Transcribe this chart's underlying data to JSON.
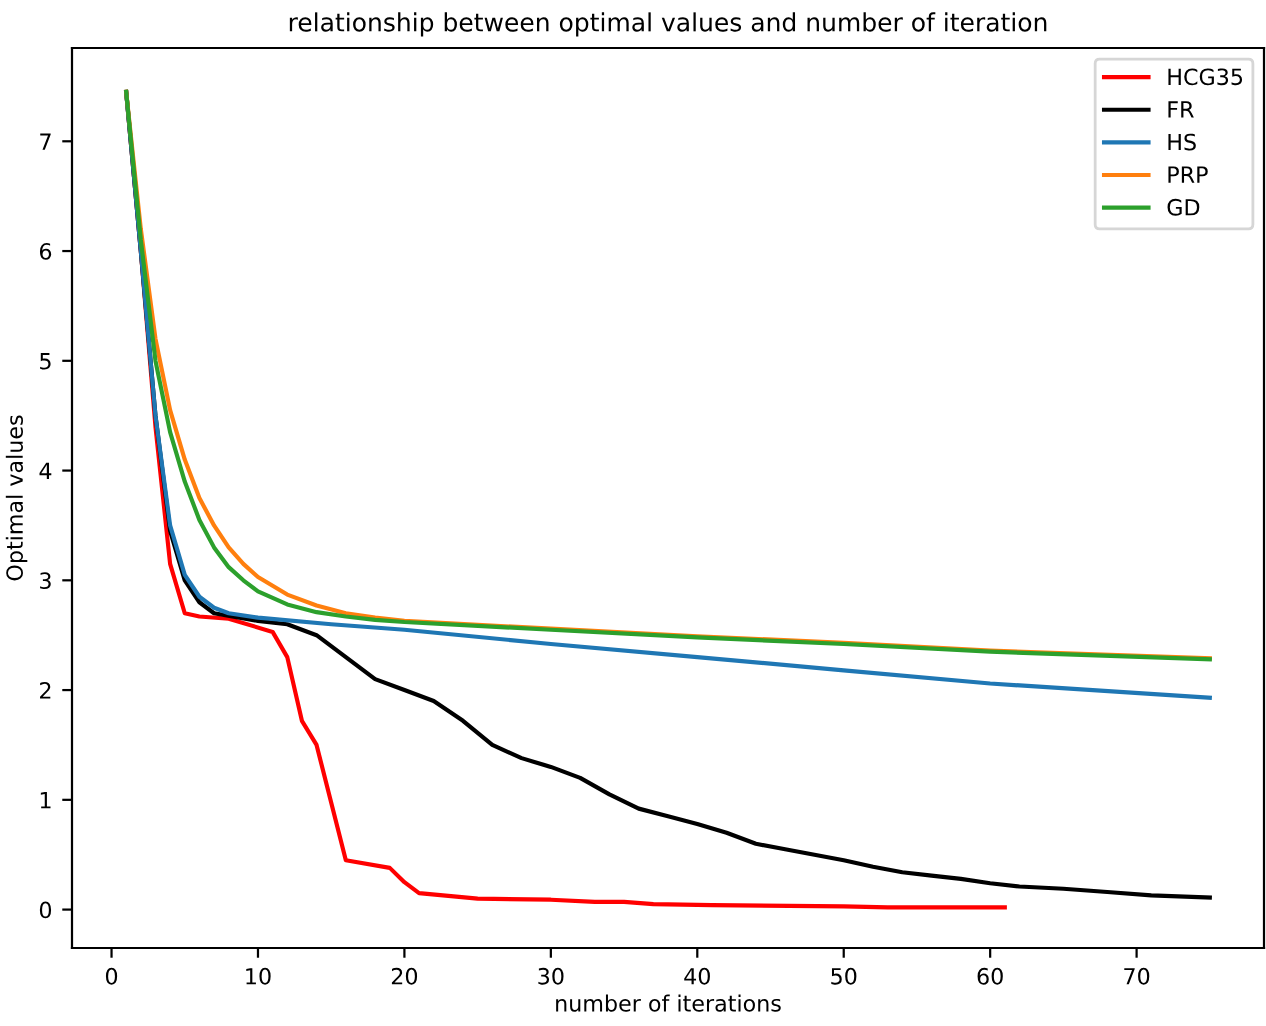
{
  "chart_data": {
    "type": "line",
    "title": "relationship between optimal values and number of iteration",
    "xlabel": "number of iterations",
    "ylabel": "Optimal values",
    "xlim": [
      -2.7,
      78.7
    ],
    "ylim": [
      -0.35,
      7.85
    ],
    "xticks": [
      0,
      10,
      20,
      30,
      40,
      50,
      60,
      70
    ],
    "yticks": [
      0,
      1,
      2,
      3,
      4,
      5,
      6,
      7
    ],
    "grid": false,
    "legend": "top right",
    "marker": "none",
    "line_style": "solid",
    "series": [
      {
        "name": "HCG35",
        "color": "#ff0000",
        "x": [
          1,
          2,
          3,
          4,
          5,
          6,
          8,
          11,
          12,
          13,
          14,
          16,
          19,
          20,
          21,
          25,
          30,
          33,
          35,
          37,
          41,
          50,
          53,
          61
        ],
        "values": [
          7.45,
          6.0,
          4.4,
          3.15,
          2.7,
          2.67,
          2.65,
          2.53,
          2.3,
          1.72,
          1.5,
          0.45,
          0.38,
          0.25,
          0.15,
          0.1,
          0.09,
          0.07,
          0.07,
          0.05,
          0.04,
          0.03,
          0.02,
          0.02
        ]
      },
      {
        "name": "FR",
        "color": "#000000",
        "x": [
          1,
          2,
          3,
          4,
          5,
          6,
          7,
          10,
          12,
          14,
          16,
          18,
          20,
          22,
          24,
          26,
          28,
          30,
          32,
          34,
          36,
          38,
          40,
          42,
          44,
          46,
          48,
          50,
          52,
          54,
          56,
          58,
          60,
          62,
          65,
          68,
          71,
          75
        ],
        "values": [
          7.45,
          6.0,
          4.5,
          3.45,
          3.0,
          2.8,
          2.7,
          2.63,
          2.6,
          2.5,
          2.3,
          2.1,
          2.0,
          1.9,
          1.72,
          1.5,
          1.38,
          1.3,
          1.2,
          1.05,
          0.92,
          0.85,
          0.78,
          0.7,
          0.6,
          0.55,
          0.5,
          0.45,
          0.39,
          0.34,
          0.31,
          0.28,
          0.24,
          0.21,
          0.19,
          0.16,
          0.13,
          0.11
        ]
      },
      {
        "name": "HS",
        "color": "#1f77b4",
        "x": [
          1,
          2,
          3,
          4,
          5,
          6,
          7,
          8,
          10,
          15,
          20,
          30,
          40,
          50,
          60,
          75
        ],
        "values": [
          7.45,
          6.0,
          4.5,
          3.5,
          3.05,
          2.85,
          2.75,
          2.7,
          2.66,
          2.6,
          2.55,
          2.42,
          2.3,
          2.18,
          2.06,
          1.93
        ]
      },
      {
        "name": "PRP",
        "color": "#ff7f0e",
        "x": [
          1,
          2,
          3,
          4,
          5,
          6,
          7,
          8,
          9,
          10,
          12,
          14,
          16,
          18,
          20,
          30,
          40,
          50,
          60,
          75
        ],
        "values": [
          7.45,
          6.2,
          5.2,
          4.55,
          4.1,
          3.75,
          3.5,
          3.3,
          3.15,
          3.03,
          2.87,
          2.77,
          2.7,
          2.66,
          2.63,
          2.56,
          2.49,
          2.43,
          2.36,
          2.29
        ]
      },
      {
        "name": "GD",
        "color": "#2ca02c",
        "x": [
          1,
          2,
          3,
          4,
          5,
          6,
          7,
          8,
          9,
          10,
          12,
          14,
          16,
          18,
          20,
          30,
          40,
          50,
          60,
          75
        ],
        "values": [
          7.45,
          6.1,
          5.0,
          4.35,
          3.9,
          3.55,
          3.3,
          3.12,
          3.0,
          2.9,
          2.78,
          2.71,
          2.67,
          2.64,
          2.62,
          2.55,
          2.48,
          2.42,
          2.35,
          2.28
        ]
      }
    ]
  }
}
